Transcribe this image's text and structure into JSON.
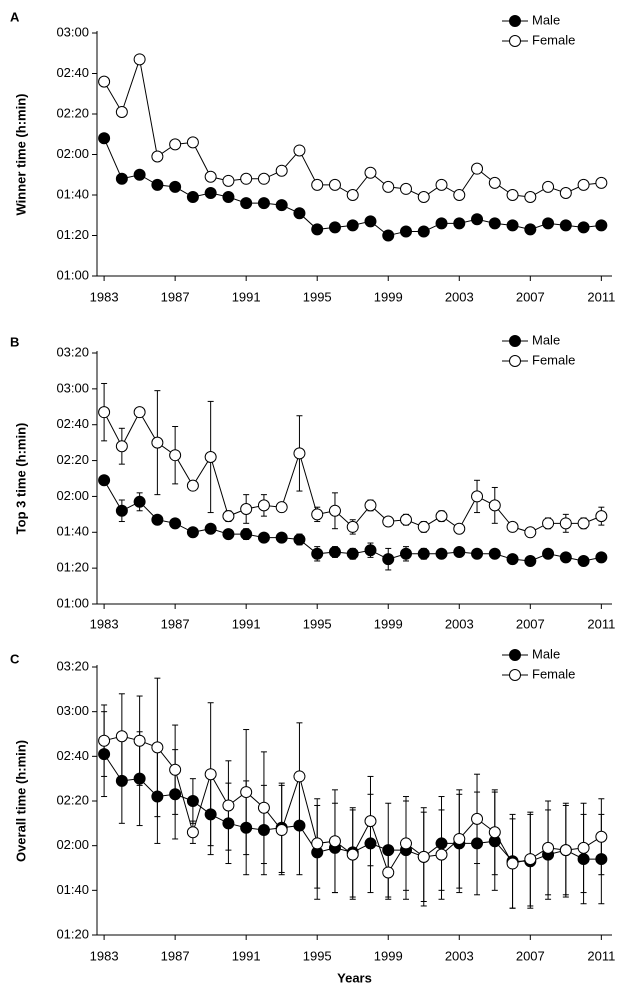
{
  "chart_data": [
    {
      "type": "line",
      "panel_label": "A",
      "ylabel": "Winner time (h:min)",
      "legend": "upper right",
      "errorbars": false,
      "x": [
        1983,
        1984,
        1985,
        1986,
        1987,
        1988,
        1989,
        1990,
        1991,
        1992,
        1993,
        1994,
        1995,
        1996,
        1997,
        1998,
        1999,
        2000,
        2001,
        2002,
        2003,
        2004,
        2005,
        2006,
        2007,
        2008,
        2009,
        2010,
        2011
      ],
      "xlim": [
        1982.6,
        2011.6
      ],
      "xticks": [
        1983,
        1987,
        1991,
        1995,
        1999,
        2003,
        2007,
        2011
      ],
      "ylim": [
        60,
        180
      ],
      "yticks": [
        {
          "value": 60,
          "label": "01:00"
        },
        {
          "value": 80,
          "label": "01:20"
        },
        {
          "value": 100,
          "label": "01:40"
        },
        {
          "value": 120,
          "label": "02:00"
        },
        {
          "value": 140,
          "label": "02:20"
        },
        {
          "value": 160,
          "label": "02:40"
        },
        {
          "value": 180,
          "label": "03:00"
        }
      ],
      "series": [
        {
          "name": "Male",
          "color": "#000000",
          "marker_fill": "#000000",
          "values": [
            128,
            108,
            110,
            105,
            104,
            99,
            101,
            99,
            96,
            96,
            95,
            91,
            83,
            84,
            85,
            87,
            80,
            82,
            82,
            86,
            86,
            88,
            86,
            85,
            83,
            86,
            85,
            84,
            85
          ]
        },
        {
          "name": "Female",
          "color": "#000000",
          "marker_fill": "#ffffff",
          "values": [
            156,
            141,
            167,
            119,
            125,
            126,
            109,
            107,
            108,
            108,
            112,
            122,
            105,
            105,
            100,
            111,
            104,
            103,
            99,
            105,
            100,
            113,
            106,
            100,
            99,
            104,
            101,
            105,
            106
          ]
        }
      ]
    },
    {
      "type": "line",
      "panel_label": "B",
      "ylabel": "Top 3 time (h:min)",
      "legend": "upper right",
      "errorbars": true,
      "x": [
        1983,
        1984,
        1985,
        1986,
        1987,
        1988,
        1989,
        1990,
        1991,
        1992,
        1993,
        1994,
        1995,
        1996,
        1997,
        1998,
        1999,
        2000,
        2001,
        2002,
        2003,
        2004,
        2005,
        2006,
        2007,
        2008,
        2009,
        2010,
        2011
      ],
      "xlim": [
        1982.6,
        2011.6
      ],
      "xticks": [
        1983,
        1987,
        1991,
        1995,
        1999,
        2003,
        2007,
        2011
      ],
      "ylim": [
        60,
        200
      ],
      "yticks": [
        {
          "value": 60,
          "label": "01:00"
        },
        {
          "value": 80,
          "label": "01:20"
        },
        {
          "value": 100,
          "label": "01:40"
        },
        {
          "value": 120,
          "label": "02:00"
        },
        {
          "value": 140,
          "label": "02:20"
        },
        {
          "value": 160,
          "label": "02:40"
        },
        {
          "value": 180,
          "label": "03:00"
        },
        {
          "value": 200,
          "label": "03:20"
        }
      ],
      "series": [
        {
          "name": "Male",
          "color": "#000000",
          "marker_fill": "#000000",
          "values": [
            129,
            112,
            117,
            107,
            105,
            100,
            102,
            99,
            99,
            97,
            97,
            96,
            88,
            89,
            88,
            90,
            85,
            88,
            88,
            88,
            89,
            88,
            88,
            85,
            84,
            88,
            86,
            84,
            86
          ],
          "errors": [
            1,
            6,
            5,
            1,
            1,
            1,
            1,
            2,
            3,
            1,
            1,
            3,
            4,
            3,
            3,
            4,
            6,
            4,
            3,
            1,
            1,
            1,
            1,
            1,
            1,
            1,
            1,
            1,
            1
          ]
        },
        {
          "name": "Female",
          "color": "#000000",
          "marker_fill": "#ffffff",
          "values": [
            167,
            148,
            167,
            150,
            143,
            126,
            142,
            109,
            113,
            115,
            114,
            144,
            110,
            112,
            103,
            115,
            106,
            107,
            103,
            109,
            102,
            120,
            115,
            103,
            100,
            105,
            105,
            105,
            109
          ],
          "errors": [
            16,
            10,
            1,
            29,
            16,
            1,
            31,
            3,
            8,
            6,
            2,
            21,
            4,
            10,
            4,
            3,
            2,
            3,
            3,
            3,
            2,
            9,
            10,
            2,
            2,
            3,
            5,
            3,
            5
          ]
        }
      ]
    },
    {
      "type": "line",
      "panel_label": "C",
      "ylabel": "Overall time (h:min)",
      "xlabel": "Years",
      "legend": "upper right",
      "errorbars": true,
      "x": [
        1983,
        1984,
        1985,
        1986,
        1987,
        1988,
        1989,
        1990,
        1991,
        1992,
        1993,
        1994,
        1995,
        1996,
        1997,
        1998,
        1999,
        2000,
        2001,
        2002,
        2003,
        2004,
        2005,
        2006,
        2007,
        2008,
        2009,
        2010,
        2011
      ],
      "xlim": [
        1982.6,
        2011.6
      ],
      "xticks": [
        1983,
        1987,
        1991,
        1995,
        1999,
        2003,
        2007,
        2011
      ],
      "ylim": [
        80,
        200
      ],
      "yticks": [
        {
          "value": 80,
          "label": "01:20"
        },
        {
          "value": 100,
          "label": "01:40"
        },
        {
          "value": 120,
          "label": "02:00"
        },
        {
          "value": 140,
          "label": "02:20"
        },
        {
          "value": 160,
          "label": "02:40"
        },
        {
          "value": 180,
          "label": "03:00"
        },
        {
          "value": 200,
          "label": "03:20"
        }
      ],
      "series": [
        {
          "name": "Male",
          "color": "#000000",
          "marker_fill": "#000000",
          "values": [
            161,
            149,
            150,
            142,
            143,
            140,
            134,
            130,
            128,
            127,
            128,
            129,
            117,
            119,
            117,
            121,
            118,
            118,
            115,
            121,
            121,
            121,
            122,
            113,
            113,
            116,
            118,
            114,
            114
          ],
          "errors": [
            19,
            19,
            21,
            21,
            20,
            10,
            18,
            18,
            21,
            20,
            20,
            22,
            21,
            20,
            20,
            22,
            21,
            22,
            22,
            21,
            22,
            23,
            22,
            21,
            21,
            20,
            20,
            20,
            20
          ]
        },
        {
          "name": "Female",
          "color": "#000000",
          "marker_fill": "#ffffff",
          "values": [
            167,
            169,
            167,
            164,
            154,
            126,
            152,
            138,
            144,
            137,
            127,
            151,
            121,
            122,
            116,
            131,
            108,
            121,
            115,
            116,
            123,
            132,
            126,
            112,
            114,
            119,
            118,
            119,
            124
          ],
          "errors": [
            16,
            19,
            20,
            31,
            20,
            5,
            32,
            20,
            28,
            25,
            20,
            24,
            20,
            23,
            20,
            20,
            12,
            21,
            20,
            20,
            22,
            20,
            19,
            20,
            21,
            21,
            21,
            20,
            17
          ]
        }
      ]
    }
  ]
}
